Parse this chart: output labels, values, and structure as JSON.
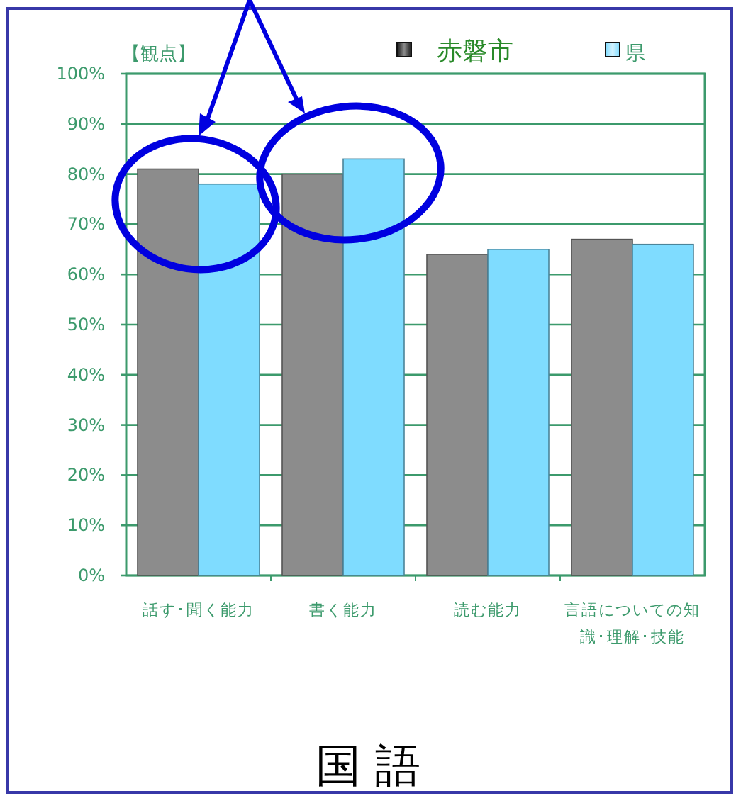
{
  "chart_data": {
    "type": "bar",
    "title": "国 語",
    "annotations": [
      "【観点】"
    ],
    "categories": [
      "話す･聞く能力",
      "書く能力",
      "読む能力",
      "言語についての知識･理解･技能"
    ],
    "series": [
      {
        "name": "赤磐市",
        "color": "#8c8c8c",
        "values": [
          81,
          80,
          64,
          67
        ]
      },
      {
        "name": "県",
        "color": "#7fdcff",
        "values": [
          78,
          83,
          65,
          66
        ]
      }
    ],
    "ylim": [
      0,
      100
    ],
    "yticks": [
      {
        "value": 0,
        "label": "0%"
      },
      {
        "value": 10,
        "label": "10%"
      },
      {
        "value": 20,
        "label": "20%"
      },
      {
        "value": 30,
        "label": "30%"
      },
      {
        "value": 40,
        "label": "40%"
      },
      {
        "value": 50,
        "label": "50%"
      },
      {
        "value": 60,
        "label": "60%"
      },
      {
        "value": 70,
        "label": "70%"
      },
      {
        "value": 80,
        "label": "80%"
      },
      {
        "value": 90,
        "label": "90%"
      },
      {
        "value": 100,
        "label": "100%"
      }
    ],
    "grid": "y",
    "legend": "top right"
  }
}
